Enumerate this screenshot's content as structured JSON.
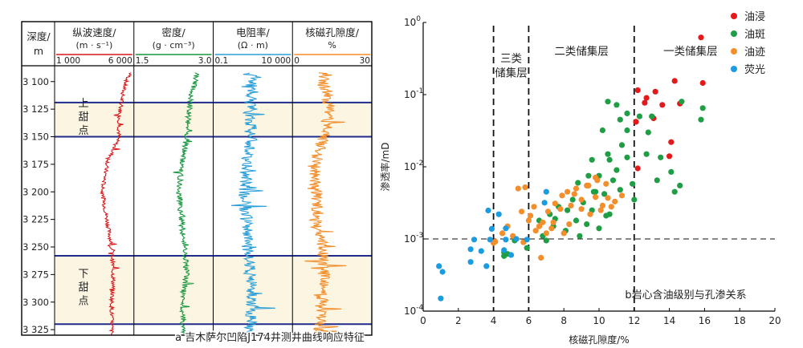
{
  "chart_data": [
    {
      "type": "line",
      "panel_caption": "a 吉木萨尔凹陷J174井测井曲线响应特征",
      "depth_axis": {
        "label_line1": "深度/",
        "label_line2": "m",
        "range": [
          3090,
          3330
        ],
        "ticks": [
          "3 100",
          "3 125",
          "3 150",
          "3 175",
          "3 200",
          "3 225",
          "3 250",
          "3 275",
          "3 300",
          "3 325"
        ],
        "tick_values": [
          3100,
          3125,
          3150,
          3175,
          3200,
          3225,
          3250,
          3275,
          3300,
          3325
        ]
      },
      "zones": [
        {
          "name_chars": [
            "上",
            "甜",
            "点"
          ],
          "top": 3119,
          "bottom": 3150
        },
        {
          "name_chars": [
            "下",
            "甜",
            "点"
          ],
          "top": 3258,
          "bottom": 3320
        }
      ],
      "tracks": [
        {
          "title": "纵波速度/",
          "unit": "(m · s⁻¹)",
          "scale_min": "1 000",
          "scale_max": "6 000",
          "min": 1000,
          "max": 6000,
          "color": "#d7191c",
          "profile": [
            [
              3092,
              5800
            ],
            [
              3100,
              5500
            ],
            [
              3110,
              5300
            ],
            [
              3120,
              5200
            ],
            [
              3130,
              5100
            ],
            [
              3150,
              5050
            ],
            [
              3175,
              4300
            ],
            [
              3200,
              4000
            ],
            [
              3225,
              4300
            ],
            [
              3250,
              4600
            ],
            [
              3260,
              4650
            ],
            [
              3280,
              4700
            ],
            [
              3300,
              4600
            ],
            [
              3330,
              4600
            ]
          ]
        },
        {
          "title": "密度/",
          "unit": "(g · cm⁻³)",
          "scale_min": "1.5",
          "scale_max": "3.0",
          "min": 1.5,
          "max": 3.0,
          "color": "#1a9641",
          "profile": [
            [
              3092,
              2.7
            ],
            [
              3100,
              2.65
            ],
            [
              3110,
              2.6
            ],
            [
              3125,
              2.55
            ],
            [
              3150,
              2.5
            ],
            [
              3175,
              2.4
            ],
            [
              3200,
              2.35
            ],
            [
              3225,
              2.4
            ],
            [
              3250,
              2.45
            ],
            [
              3275,
              2.5
            ],
            [
              3300,
              2.4
            ],
            [
              3330,
              2.45
            ]
          ]
        },
        {
          "title": "电阻率/",
          "unit": "(Ω · m)",
          "scale_min": "0.1",
          "scale_max": "10 000",
          "min": 0.1,
          "max": 10000,
          "log": true,
          "color": "#2c9fd9",
          "profile": [
            [
              3092,
              15
            ],
            [
              3100,
              25
            ],
            [
              3110,
              30
            ],
            [
              3125,
              18
            ],
            [
              3150,
              25
            ],
            [
              3175,
              12
            ],
            [
              3200,
              10
            ],
            [
              3225,
              12
            ],
            [
              3250,
              15
            ],
            [
              3275,
              20
            ],
            [
              3300,
              30
            ],
            [
              3330,
              20
            ]
          ]
        },
        {
          "title": "核磁孔隙度/",
          "unit": "%",
          "scale_min": "0",
          "scale_max": "30",
          "min": 0,
          "max": 30,
          "color": "#f28e2b",
          "profile": [
            [
              3092,
              12
            ],
            [
              3100,
              11
            ],
            [
              3110,
              13
            ],
            [
              3125,
              14
            ],
            [
              3150,
              12
            ],
            [
              3175,
              8
            ],
            [
              3200,
              9
            ],
            [
              3225,
              10
            ],
            [
              3250,
              11
            ],
            [
              3275,
              12
            ],
            [
              3300,
              11
            ],
            [
              3330,
              10
            ]
          ]
        }
      ]
    },
    {
      "type": "scatter",
      "panel_caption": "b岩心含油级别与孔渗关系",
      "xlabel": "核磁孔隙度/%",
      "ylabel": "渗透率/mD",
      "xlim": [
        0,
        20
      ],
      "ylim_log": [
        -4,
        0
      ],
      "xticks": [
        "0",
        "2",
        "4",
        "6",
        "8",
        "10",
        "12",
        "14",
        "16",
        "18",
        "20"
      ],
      "yticks": [
        {
          "base": "10",
          "exp": "0",
          "value": 0
        },
        {
          "base": "10",
          "exp": "-1",
          "value": -1
        },
        {
          "base": "10",
          "exp": "-2",
          "value": -2
        },
        {
          "base": "10",
          "exp": "-3",
          "value": -3
        },
        {
          "base": "10",
          "exp": "-4",
          "value": -4
        }
      ],
      "cutoff_lines": {
        "vertical": [
          4,
          6,
          12
        ],
        "horizontal_log": -3
      },
      "region_labels": [
        {
          "lines": [
            "三类",
            "储集层"
          ],
          "x": 5.0,
          "y_log": -0.55
        },
        {
          "lines": [
            "二类储集层"
          ],
          "x": 9.0,
          "y_log": -0.45
        },
        {
          "lines": [
            "一类储集层"
          ],
          "x": 15.2,
          "y_log": -0.45
        }
      ],
      "legend_position": "top-right",
      "series": [
        {
          "name": "油浸",
          "color": "#e31a1c",
          "points": [
            [
              15.8,
              0.62
            ],
            [
              12.2,
              0.115
            ],
            [
              12.7,
              0.09
            ],
            [
              13.2,
              0.11
            ],
            [
              14.3,
              0.155
            ],
            [
              15.9,
              0.145
            ],
            [
              12.6,
              0.077
            ],
            [
              13.6,
              0.072
            ],
            [
              14.6,
              0.075
            ],
            [
              12.1,
              0.042
            ],
            [
              13.1,
              0.047
            ],
            [
              14.1,
              0.022
            ],
            [
              14.0,
              0.014
            ],
            [
              12.2,
              0.0095
            ]
          ]
        },
        {
          "name": "油斑",
          "color": "#1f9e45",
          "points": [
            [
              10.5,
              0.08
            ],
            [
              11.0,
              0.072
            ],
            [
              11.6,
              0.055
            ],
            [
              10.2,
              0.032
            ],
            [
              11.2,
              0.045
            ],
            [
              12.3,
              0.05
            ],
            [
              13.0,
              0.05
            ],
            [
              14.7,
              0.08
            ],
            [
              15.9,
              0.065
            ],
            [
              15.8,
              0.045
            ],
            [
              11.6,
              0.032
            ],
            [
              12.8,
              0.03
            ],
            [
              11.3,
              0.02
            ],
            [
              10.5,
              0.015
            ],
            [
              9.6,
              0.0125
            ],
            [
              10.6,
              0.0125
            ],
            [
              11.0,
              0.009
            ],
            [
              11.6,
              0.0135
            ],
            [
              12.7,
              0.015
            ],
            [
              13.5,
              0.0135
            ],
            [
              14.1,
              0.0085
            ],
            [
              14.6,
              0.0055
            ],
            [
              13.3,
              0.0065
            ],
            [
              14.3,
              0.0045
            ],
            [
              11.9,
              0.0058
            ],
            [
              10.0,
              0.0075
            ],
            [
              10.8,
              0.0065
            ],
            [
              9.4,
              0.0075
            ],
            [
              8.8,
              0.006
            ],
            [
              11.2,
              0.0048
            ],
            [
              9.8,
              0.0045
            ],
            [
              10.3,
              0.0042
            ],
            [
              12.0,
              0.0035
            ],
            [
              8.5,
              0.0035
            ],
            [
              9.1,
              0.0032
            ],
            [
              7.7,
              0.0028
            ],
            [
              8.2,
              0.0025
            ],
            [
              9.6,
              0.0025
            ],
            [
              10.6,
              0.0022
            ],
            [
              7.2,
              0.0022
            ],
            [
              6.6,
              0.0018
            ],
            [
              7.4,
              0.0015
            ],
            [
              8.1,
              0.0013
            ],
            [
              6.8,
              0.0011
            ],
            [
              7.5,
              0.0019
            ],
            [
              8.7,
              0.0018
            ],
            [
              9.3,
              0.0016
            ],
            [
              10.0,
              0.0014
            ],
            [
              8.9,
              0.0011
            ],
            [
              7.0,
              0.00095
            ],
            [
              5.2,
              0.00095
            ],
            [
              4.6,
              0.00065
            ],
            [
              4.6,
              0.00058
            ],
            [
              4.8,
              0.00062
            ],
            [
              5.9,
              0.00075
            ],
            [
              9.7,
              0.0045
            ],
            [
              10.4,
              0.0021
            ]
          ]
        },
        {
          "name": "油迹",
          "color": "#f28e2b",
          "points": [
            [
              9.9,
              0.0065
            ],
            [
              10.4,
              0.0058
            ],
            [
              9.4,
              0.0055
            ],
            [
              8.7,
              0.005
            ],
            [
              9.8,
              0.0038
            ],
            [
              10.5,
              0.0037
            ],
            [
              10.9,
              0.0033
            ],
            [
              11.3,
              0.004
            ],
            [
              8.2,
              0.0045
            ],
            [
              7.9,
              0.004
            ],
            [
              7.5,
              0.0031
            ],
            [
              9.0,
              0.0026
            ],
            [
              10.1,
              0.0025
            ],
            [
              7.1,
              0.0024
            ],
            [
              6.3,
              0.0028
            ],
            [
              6.1,
              0.0021
            ],
            [
              7.4,
              0.0017
            ],
            [
              8.3,
              0.0016
            ],
            [
              8.0,
              0.0012
            ],
            [
              6.8,
              0.0017
            ],
            [
              6.4,
              0.0013
            ],
            [
              7.0,
              0.0012
            ],
            [
              5.6,
              0.0024
            ],
            [
              5.4,
              0.005
            ],
            [
              5.8,
              0.0052
            ],
            [
              4.8,
              0.0015
            ],
            [
              5.7,
              0.0009
            ],
            [
              4.1,
              0.00092
            ],
            [
              4.0,
              0.00088
            ],
            [
              4.5,
              0.0012
            ],
            [
              5.1,
              0.0011
            ],
            [
              6.7,
              0.00055
            ],
            [
              9.0,
              0.0035
            ],
            [
              8.4,
              0.0029
            ],
            [
              7.8,
              0.0026
            ],
            [
              9.5,
              0.0022
            ],
            [
              10.2,
              0.0029
            ],
            [
              10.7,
              0.0028
            ],
            [
              9.3,
              0.0055
            ],
            [
              8.6,
              0.0042
            ],
            [
              9.8,
              0.0071
            ],
            [
              6.6,
              0.0015
            ],
            [
              7.3,
              0.0014
            ],
            [
              6.0,
              0.0018
            ]
          ]
        },
        {
          "name": "荧光",
          "color": "#1b9be0",
          "points": [
            [
              1.0,
              0.00015
            ],
            [
              0.9,
              0.00042
            ],
            [
              1.1,
              0.00035
            ],
            [
              2.7,
              0.00072
            ],
            [
              2.7,
              0.00048
            ],
            [
              2.9,
              0.00098
            ],
            [
              3.3,
              0.00068
            ],
            [
              3.8,
              0.00098
            ],
            [
              3.6,
              0.00042
            ],
            [
              3.7,
              0.00248
            ],
            [
              3.9,
              0.00138
            ],
            [
              4.3,
              0.0022
            ],
            [
              4.7,
              0.0014
            ],
            [
              4.7,
              0.00098
            ],
            [
              4.6,
              0.0007
            ],
            [
              5.0,
              0.0006
            ],
            [
              5.3,
              0.001
            ],
            [
              5.9,
              0.00098
            ],
            [
              7.0,
              0.0045
            ],
            [
              6.9,
              0.00318
            ]
          ]
        }
      ]
    }
  ]
}
